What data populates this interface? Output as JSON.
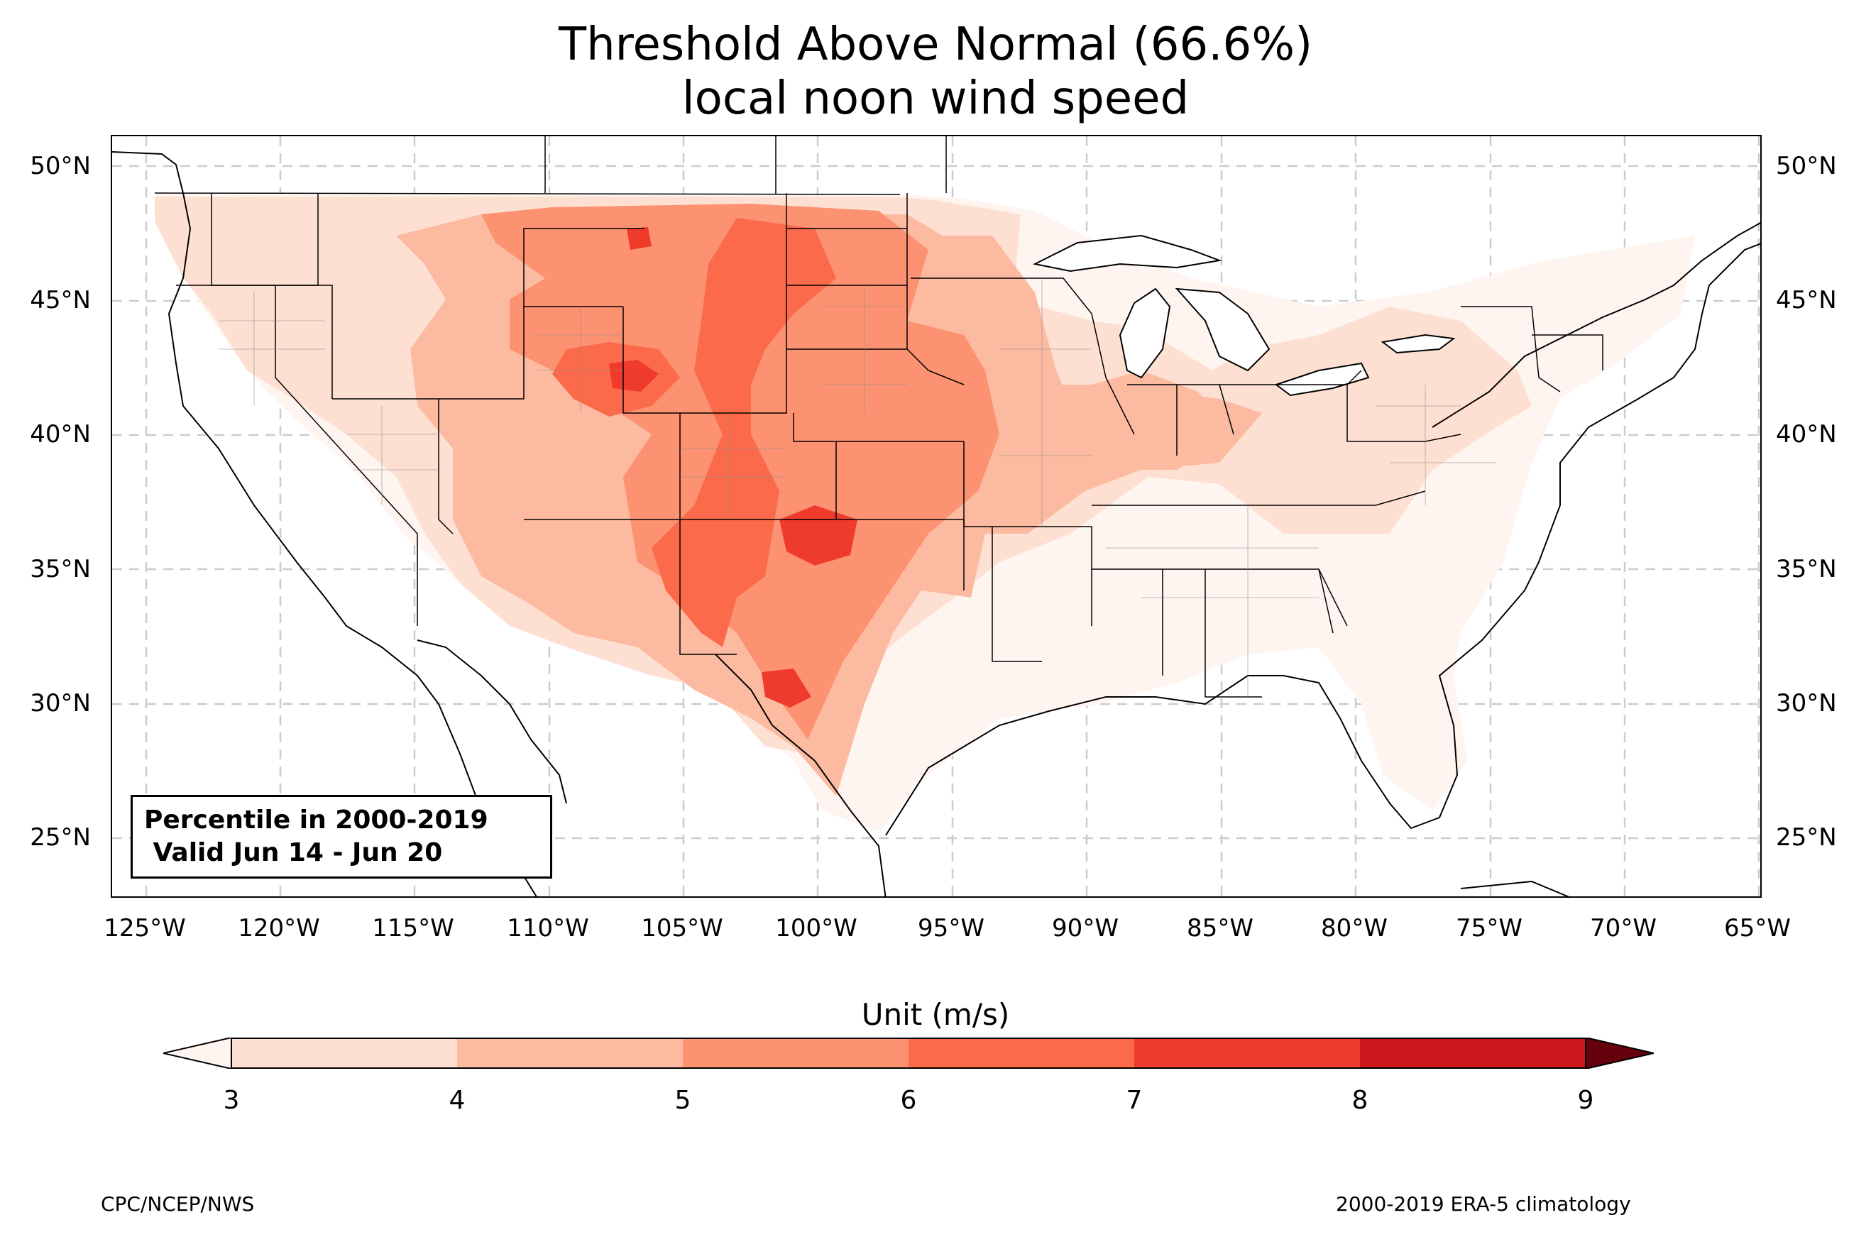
{
  "title_line1": "Threshold Above Normal (66.6%)",
  "title_line2": "local noon wind speed",
  "lat_ticks": [
    "50°N",
    "45°N",
    "40°N",
    "35°N",
    "30°N",
    "25°N"
  ],
  "lon_ticks": [
    "125°W",
    "120°W",
    "115°W",
    "110°W",
    "105°W",
    "100°W",
    "95°W",
    "90°W",
    "85°W",
    "80°W",
    "75°W",
    "70°W",
    "65°W"
  ],
  "map_extent": {
    "lon_min": -126.5,
    "lon_max": -64.8,
    "lat_min": 22.8,
    "lat_max": 51.2
  },
  "infobox": {
    "line1": "Percentile in 2000-2019",
    "line2": " Valid Jun 14 - Jun 20"
  },
  "colorbar": {
    "title": "Unit (m/s)",
    "ticks": [
      "3",
      "4",
      "5",
      "6",
      "7",
      "8",
      "9"
    ],
    "colors": [
      "#fee0d2",
      "#fcbba1",
      "#fc9272",
      "#fb6a4a",
      "#ef3b2c",
      "#cb181d",
      "#a50f15"
    ],
    "under_color": "#fff5f0",
    "over_color": "#67000d"
  },
  "footer_left": "CPC/NCEP/NWS",
  "footer_right": "2000-2019 ERA-5 climatology"
}
